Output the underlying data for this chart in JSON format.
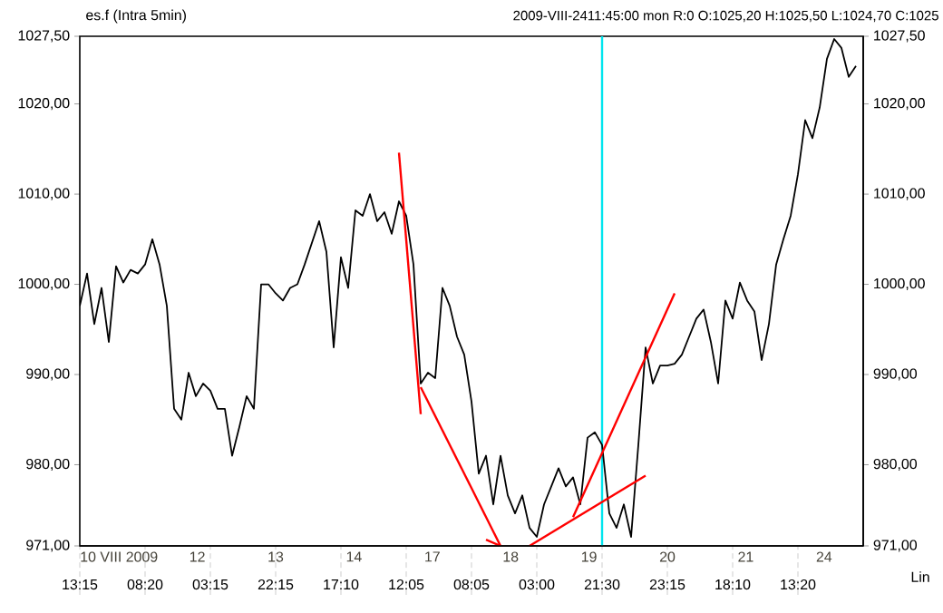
{
  "chart_data": {
    "type": "line",
    "title": "es.f (Intra 5min)",
    "subtitle": "2009-VIII-2411:45:00 mon R:0 O:1025,20 H:1025,50 L:1024,70 C:1025",
    "annotations": [
      "Lin",
      "10 VIII 2009",
      "12",
      "13",
      "14",
      "17",
      "18",
      "19",
      "20",
      "21",
      "24"
    ],
    "marker": "none",
    "categories": [
      "13:15",
      null,
      null,
      null,
      null,
      null,
      null,
      null,
      null,
      "08:20",
      null,
      null,
      null,
      null,
      null,
      null,
      null,
      null,
      "03:15",
      null,
      null,
      null,
      null,
      null,
      null,
      null,
      null,
      "22:15",
      null,
      null,
      null,
      null,
      null,
      null,
      null,
      null,
      "17:10",
      null,
      null,
      null,
      null,
      null,
      null,
      null,
      null,
      "12:05",
      null,
      null,
      null,
      null,
      null,
      null,
      null,
      null,
      "08:05",
      null,
      null,
      null,
      null,
      null,
      null,
      null,
      null,
      "03:00",
      null,
      null,
      null,
      null,
      null,
      null,
      null,
      null,
      "21:30",
      null,
      null,
      null,
      null,
      null,
      null,
      null,
      null,
      "23:15",
      null,
      null,
      null,
      null,
      null,
      null,
      null,
      null,
      "18:10",
      null,
      null,
      null,
      null,
      null,
      null,
      null,
      null,
      "13:20",
      null,
      null,
      null,
      null,
      null,
      null,
      null,
      null
    ],
    "ylim": [
      971,
      1027.5
    ],
    "yticks": [
      {
        "value": 971,
        "label": "971,00"
      },
      {
        "value": 980,
        "label": "980,00"
      },
      {
        "value": 990,
        "label": "990,00"
      },
      {
        "value": 1000,
        "label": "1000,00"
      },
      {
        "value": 1010,
        "label": "1010,00"
      },
      {
        "value": 1020,
        "label": "1020,00"
      },
      {
        "value": 1027.5,
        "label": "1027,50"
      }
    ],
    "y2lim": [
      971,
      1027.5
    ],
    "y2ticks": [
      {
        "value": 971,
        "label": "971,00"
      },
      {
        "value": 980,
        "label": "980,00"
      },
      {
        "value": 990,
        "label": "990,00"
      },
      {
        "value": 1000,
        "label": "1000,00"
      },
      {
        "value": 1010,
        "label": "1010,00"
      },
      {
        "value": 1020,
        "label": "1020,00"
      },
      {
        "value": 1027.5,
        "label": "1027,50"
      }
    ],
    "ref_lines": [
      {
        "axis": "x",
        "value": "21:30",
        "color": "#00e5ee"
      }
    ],
    "series": [
      {
        "color": "#000000",
        "values": [
          997.6,
          1001.2,
          995.6,
          999.6,
          993.6,
          1002,
          1000.2,
          1001.6,
          1001.2,
          1002.2,
          1005,
          1002.2,
          997.6,
          986.2,
          985,
          990.2,
          987.6,
          989,
          988.2,
          986.2,
          986.2,
          981,
          984.2,
          987.6,
          986.2,
          1000,
          1000,
          999,
          998.2,
          999.6,
          1000,
          1002.2,
          1004.6,
          1007,
          1003.6,
          993,
          1003,
          999.6,
          1008.2,
          1007.6,
          1010,
          1007,
          1008,
          1005.6,
          1009.2,
          1007.6,
          1002.2,
          989,
          990.2,
          989.6,
          999.6,
          997.6,
          994.2,
          992.2,
          987,
          979,
          981,
          975.6,
          981,
          976.6,
          974.6,
          976.6,
          973,
          972,
          975.6,
          977.6,
          979.6,
          977.6,
          978.6,
          975.6,
          983,
          983.6,
          982.2,
          974.6,
          973,
          975.6,
          972,
          982.2,
          993,
          989,
          991,
          991,
          991.2,
          992.2,
          994.2,
          996.2,
          997.2,
          993.6,
          989,
          998.2,
          996.2,
          1000.2,
          998.2,
          997,
          991.6,
          995.6,
          1002.2,
          1005,
          1007.6,
          1012.2,
          1018.2,
          1016.2,
          1019.6,
          1025,
          1027.2,
          1026.2,
          1023,
          1024.2
        ]
      },
      {
        "color": "#ff0000",
        "values": [
          null,
          null,
          null,
          null,
          null,
          null,
          null,
          null,
          null,
          null,
          null,
          null,
          null,
          null,
          null,
          null,
          null,
          null,
          null,
          null,
          null,
          null,
          null,
          null,
          null,
          null,
          null,
          null,
          null,
          null,
          null,
          null,
          null,
          null,
          null,
          null,
          null,
          null,
          null,
          null,
          null,
          null,
          null,
          null,
          1014.6,
          null,
          null,
          985.6,
          null,
          null,
          null,
          null,
          null,
          null,
          null,
          null,
          null,
          null,
          null,
          null,
          null,
          null,
          null,
          null,
          null,
          null,
          null,
          null,
          null,
          null,
          null,
          null,
          null,
          null,
          null,
          null,
          null,
          null,
          null,
          null,
          null,
          null,
          null,
          null,
          null,
          null,
          null,
          null,
          null,
          null,
          null,
          null,
          null,
          null,
          null,
          null,
          null,
          null,
          null,
          null,
          null,
          null,
          null,
          null,
          null,
          null,
          null,
          null
        ]
      },
      {
        "color": "#ff0000",
        "values": [
          null,
          null,
          null,
          null,
          null,
          null,
          null,
          null,
          null,
          null,
          null,
          null,
          null,
          null,
          null,
          null,
          null,
          null,
          null,
          null,
          null,
          null,
          null,
          null,
          null,
          null,
          null,
          null,
          null,
          null,
          null,
          null,
          null,
          null,
          null,
          null,
          null,
          null,
          null,
          null,
          null,
          null,
          null,
          null,
          null,
          null,
          null,
          988.6,
          null,
          null,
          null,
          null,
          null,
          null,
          null,
          null,
          null,
          null,
          971,
          null,
          null,
          null,
          null,
          null,
          null,
          null,
          null,
          null,
          null,
          null,
          null,
          null,
          null,
          null,
          null,
          null,
          null,
          null,
          null,
          null,
          null,
          null,
          null,
          null,
          null,
          null,
          null,
          null,
          null,
          null,
          null,
          null,
          null,
          null,
          null,
          null,
          null,
          null,
          null,
          null,
          null,
          null,
          null,
          null,
          null,
          null,
          null,
          null
        ]
      },
      {
        "color": "#ff0000",
        "values": [
          null,
          null,
          null,
          null,
          null,
          null,
          null,
          null,
          null,
          null,
          null,
          null,
          null,
          null,
          null,
          null,
          null,
          null,
          null,
          null,
          null,
          null,
          null,
          null,
          null,
          null,
          null,
          null,
          null,
          null,
          null,
          null,
          null,
          null,
          null,
          null,
          null,
          null,
          null,
          null,
          null,
          null,
          null,
          null,
          null,
          null,
          null,
          null,
          null,
          null,
          null,
          null,
          null,
          null,
          null,
          null,
          971.7,
          null,
          971,
          null,
          null,
          null,
          null,
          null,
          null,
          null,
          null,
          null,
          null,
          null,
          null,
          null,
          null,
          null,
          null,
          null,
          null,
          null,
          null,
          null,
          null,
          null,
          null,
          null,
          null,
          null,
          null,
          null,
          null,
          null,
          null,
          null,
          null,
          null,
          null,
          null,
          null,
          null,
          null,
          null,
          null,
          null,
          null,
          null,
          null,
          null,
          null,
          null
        ]
      },
      {
        "color": "#ff0000",
        "values": [
          null,
          null,
          null,
          null,
          null,
          null,
          null,
          null,
          null,
          null,
          null,
          null,
          null,
          null,
          null,
          null,
          null,
          null,
          null,
          null,
          null,
          null,
          null,
          null,
          null,
          null,
          null,
          null,
          null,
          null,
          null,
          null,
          null,
          null,
          null,
          null,
          null,
          null,
          null,
          null,
          null,
          null,
          null,
          null,
          null,
          null,
          null,
          null,
          null,
          null,
          null,
          null,
          null,
          null,
          null,
          null,
          null,
          null,
          null,
          null,
          null,
          null,
          971,
          null,
          null,
          null,
          null,
          null,
          null,
          null,
          null,
          null,
          null,
          null,
          null,
          null,
          null,
          null,
          978.8,
          null,
          null,
          null,
          null,
          null,
          null,
          null,
          null,
          null,
          null,
          null,
          null,
          null,
          null,
          null,
          null,
          null,
          null,
          null,
          null,
          null,
          null,
          null,
          null,
          null,
          null,
          null,
          null,
          null
        ]
      },
      {
        "color": "#ff0000",
        "values": [
          null,
          null,
          null,
          null,
          null,
          null,
          null,
          null,
          null,
          null,
          null,
          null,
          null,
          null,
          null,
          null,
          null,
          null,
          null,
          null,
          null,
          null,
          null,
          null,
          null,
          null,
          null,
          null,
          null,
          null,
          null,
          null,
          null,
          null,
          null,
          null,
          null,
          null,
          null,
          null,
          null,
          null,
          null,
          null,
          null,
          null,
          null,
          null,
          null,
          null,
          null,
          null,
          null,
          null,
          null,
          null,
          null,
          null,
          null,
          null,
          null,
          null,
          null,
          null,
          null,
          null,
          null,
          null,
          974.2,
          null,
          null,
          null,
          null,
          null,
          null,
          null,
          null,
          null,
          null,
          null,
          null,
          null,
          999,
          null,
          null,
          null,
          null,
          null,
          null,
          null,
          null,
          null,
          null,
          null,
          null,
          null,
          null,
          null,
          null,
          null,
          null,
          null,
          null,
          null,
          null,
          null,
          null,
          null
        ]
      }
    ]
  }
}
